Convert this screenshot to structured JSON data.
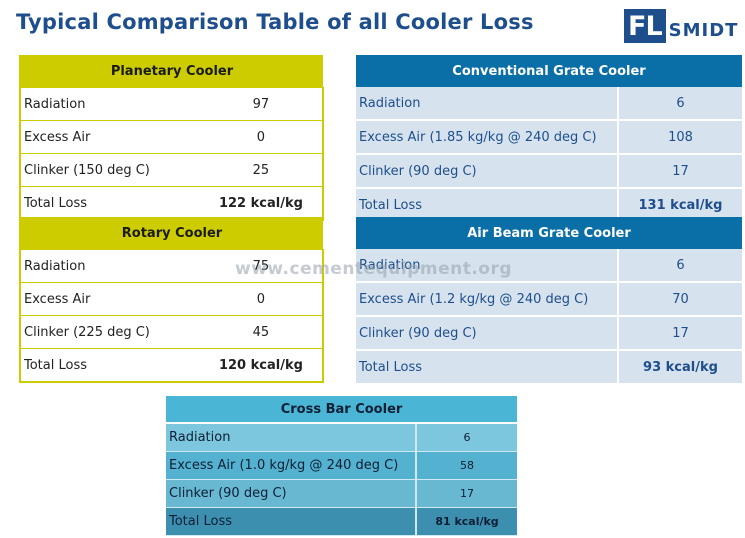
{
  "title": "Typical Comparison Table of all Cooler Loss",
  "logo": {
    "box": "FL",
    "text": "SMIDT"
  },
  "watermark": "www.cementequipment.org",
  "planetary": {
    "header": "Planetary Cooler",
    "rows": [
      {
        "label": "Radiation",
        "value": "97"
      },
      {
        "label": "Excess Air",
        "value": "0"
      },
      {
        "label": "Clinker (150 deg C)",
        "value": "25"
      },
      {
        "label": "Total Loss",
        "value": "122 kcal/kg"
      }
    ]
  },
  "rotary": {
    "header": "Rotary Cooler",
    "rows": [
      {
        "label": "Radiation",
        "value": "75"
      },
      {
        "label": "Excess Air",
        "value": "0"
      },
      {
        "label": "Clinker (225 deg C)",
        "value": "45"
      },
      {
        "label": "Total Loss",
        "value": "120 kcal/kg"
      }
    ]
  },
  "conventional": {
    "header": "Conventional Grate Cooler",
    "rows": [
      {
        "label": "Radiation",
        "value": "6"
      },
      {
        "label": "Excess Air (1.85 kg/kg @ 240 deg C)",
        "value": "108"
      },
      {
        "label": "Clinker (90 deg C)",
        "value": "17"
      },
      {
        "label": "Total Loss",
        "value": "131 kcal/kg"
      }
    ]
  },
  "airbeam": {
    "header": "Air Beam Grate Cooler",
    "rows": [
      {
        "label": "Radiation",
        "value": "6"
      },
      {
        "label": "Excess Air (1.2 kg/kg @ 240 deg C)",
        "value": "70"
      },
      {
        "label": "Clinker (90 deg C)",
        "value": "17"
      },
      {
        "label": "Total Loss",
        "value": "93 kcal/kg"
      }
    ]
  },
  "crossbar": {
    "header": "Cross Bar Cooler",
    "rows": [
      {
        "label": "Radiation",
        "value": "6"
      },
      {
        "label": "Excess Air (1.0 kg/kg @ 240 deg C)",
        "value": "58"
      },
      {
        "label": "Clinker (90 deg C)",
        "value": "17"
      },
      {
        "label": "Total Loss",
        "value": "81 kcal/kg"
      }
    ]
  }
}
